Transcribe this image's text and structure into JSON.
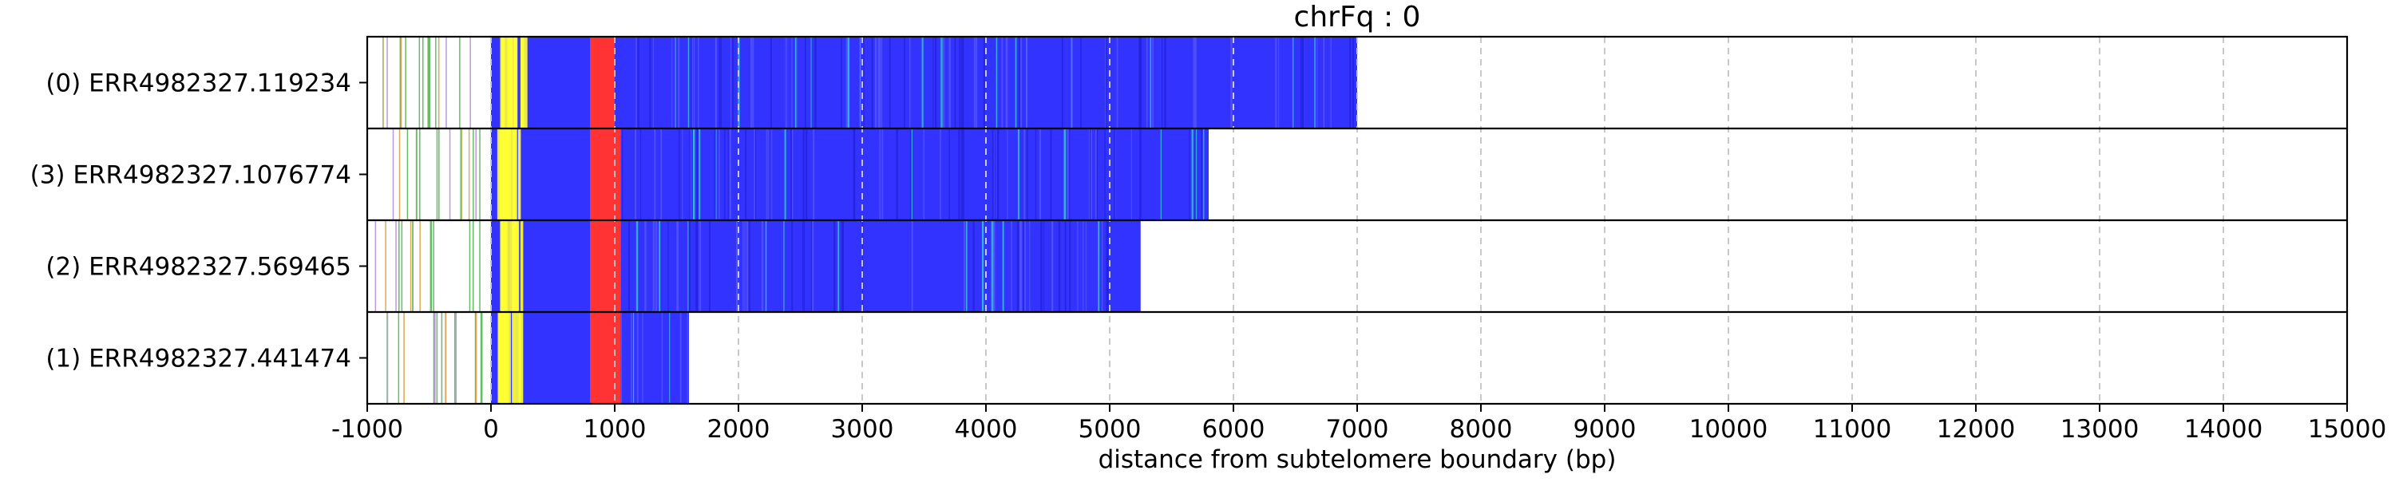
{
  "chart_data": {
    "type": "bar",
    "orientation": "horizontal",
    "title": "chrFq : 0",
    "xlabel": "distance from subtelomere boundary (bp)",
    "ylabel": "",
    "xlim": [
      -1000,
      15000
    ],
    "xticks": [
      -1000,
      0,
      1000,
      2000,
      3000,
      4000,
      5000,
      6000,
      7000,
      8000,
      9000,
      10000,
      11000,
      12000,
      13000,
      14000,
      15000
    ],
    "xgrid": true,
    "grid_style": "dashed",
    "colors": {
      "repeat": "#3333ff",
      "red_segment": "#ff3333",
      "yellow_segment": "#ffff33",
      "green_lines": "#66bb66",
      "purple_lines": "#bb99dd",
      "orange_lines": "#ddaa55",
      "cyan_lines": "#33cccc",
      "background": "#ffffff"
    },
    "reads": [
      {
        "label": "(0) ERR4982327.119234",
        "read_start": -1000,
        "repeat_start": 0,
        "red_start": 800,
        "red_end": 1000,
        "read_end": 7000
      },
      {
        "label": "(3) ERR4982327.1076774",
        "read_start": -1000,
        "repeat_start": 0,
        "red_start": 800,
        "red_end": 1050,
        "read_end": 5800
      },
      {
        "label": "(2) ERR4982327.569465",
        "read_start": -1000,
        "repeat_start": 0,
        "red_start": 800,
        "red_end": 1050,
        "read_end": 5250
      },
      {
        "label": "(1) ERR4982327.441474",
        "read_start": -1000,
        "repeat_start": 0,
        "red_start": 800,
        "red_end": 1050,
        "read_end": 1600
      }
    ]
  }
}
